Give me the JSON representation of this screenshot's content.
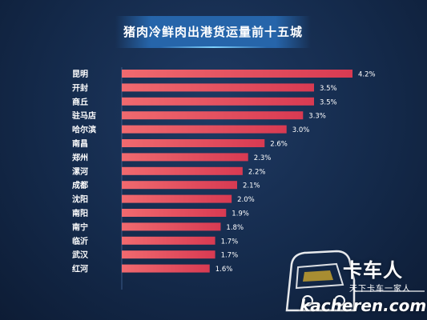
{
  "chart_data": {
    "type": "bar",
    "orientation": "horizontal",
    "title": "猪肉冷鲜肉出港货运量前十五城",
    "categories": [
      "昆明",
      "开封",
      "商丘",
      "驻马店",
      "哈尔滨",
      "南昌",
      "郑州",
      "漯河",
      "成都",
      "沈阳",
      "南阳",
      "南宁",
      "临沂",
      "武汉",
      "红河"
    ],
    "values": [
      4.2,
      3.5,
      3.5,
      3.3,
      3.0,
      2.6,
      2.3,
      2.2,
      2.1,
      2.0,
      1.9,
      1.8,
      1.7,
      1.7,
      1.6
    ],
    "value_labels": [
      "4.2%",
      "3.5%",
      "3.5%",
      "3.3%",
      "3.0%",
      "2.6%",
      "2.3%",
      "2.2%",
      "2.1%",
      "2.0%",
      "1.9%",
      "1.8%",
      "1.7%",
      "1.7%",
      "1.6%"
    ],
    "unit": "%",
    "xlim": [
      0,
      4.2
    ],
    "grid": false,
    "colors": {
      "bar_start": "#f06a6f",
      "bar_end": "#d83a52",
      "background": "#142a4b",
      "banner": "#2a6eb9"
    }
  },
  "watermark": {
    "brand": "卡车人",
    "slogan": "天下卡车一家人",
    "domain": "kacheren.com",
    "icon": "truck-icon"
  }
}
